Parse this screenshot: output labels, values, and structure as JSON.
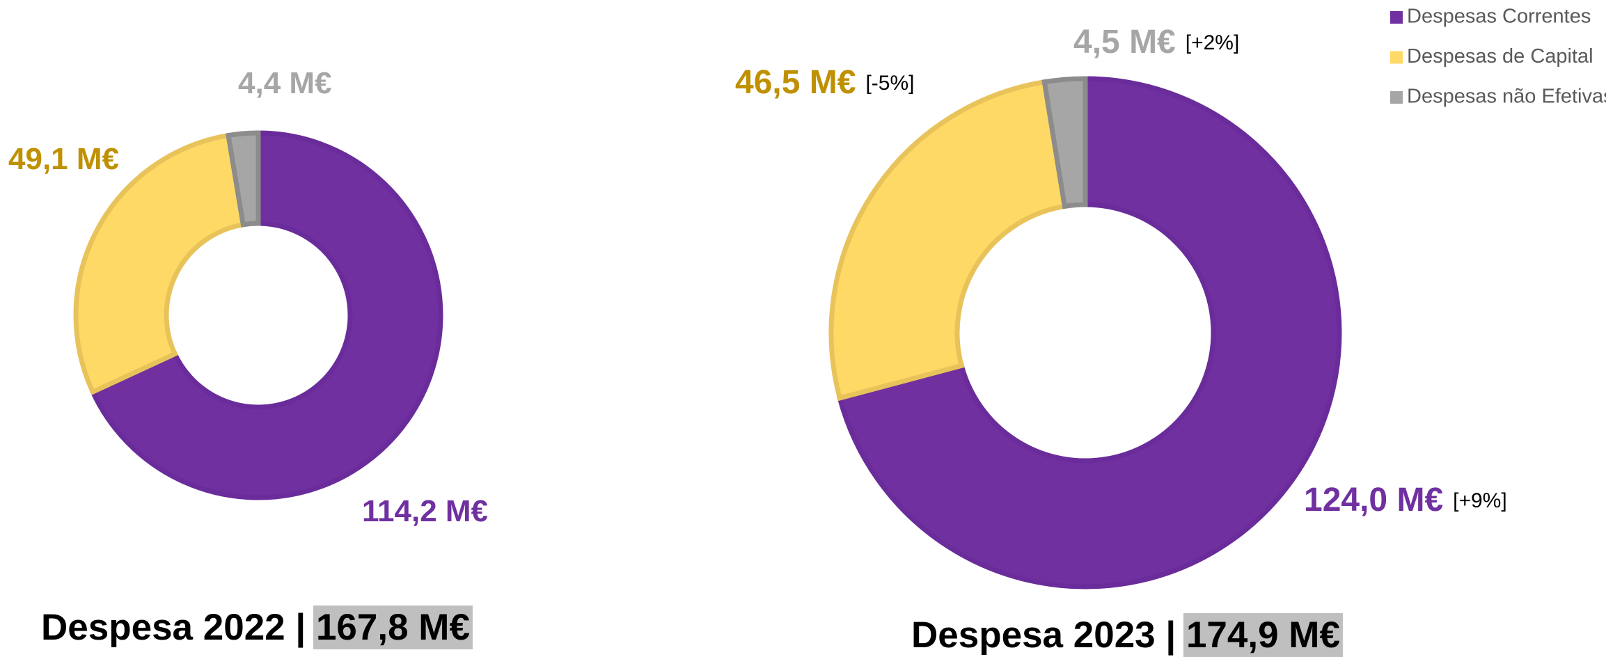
{
  "chart_data": [
    {
      "type": "donut",
      "values": [
        114.2,
        49.1,
        4.4
      ],
      "value_labels": [
        "114,2 M€",
        "49,1 M€",
        "4,4 M€"
      ],
      "colors": [
        "#7030a0",
        "#ffd966",
        "#a6a6a6"
      ],
      "title": "Despesa 2022 | ",
      "total_label": "167,8 M€"
    },
    {
      "type": "donut",
      "categories": [
        "Despesas Correntes",
        "Despesas de Capital",
        "Despesas não Efetivas"
      ],
      "values": [
        124.0,
        46.5,
        4.5
      ],
      "value_labels": [
        "124,0 M€",
        "46,5 M€",
        "4,5 M€"
      ],
      "changes": [
        "[+9%]",
        "[-5%]",
        "[+2%]"
      ],
      "colors": [
        "#7030a0",
        "#ffd966",
        "#a6a6a6"
      ],
      "title": "Despesa 2023 | ",
      "total_label": "174,9 M€",
      "legend": "top-right"
    }
  ]
}
